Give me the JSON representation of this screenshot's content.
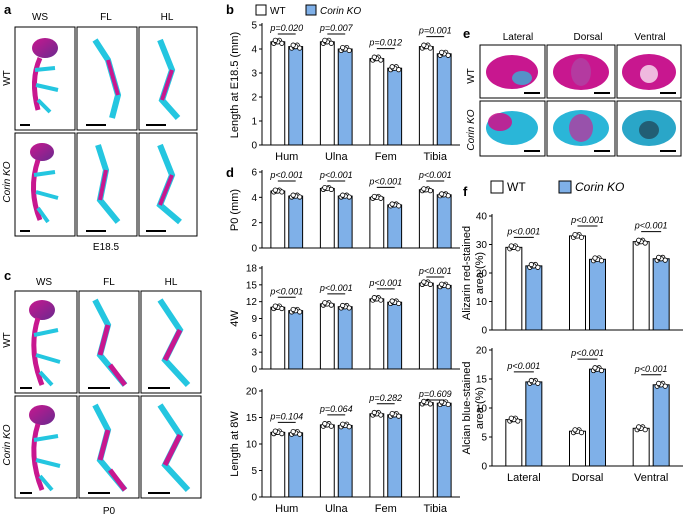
{
  "colors": {
    "wt_fill": "#ffffff",
    "ko_fill": "#7fb0e8",
    "stroke": "#000000"
  },
  "panel_a": {
    "letter": "a",
    "columns": [
      "WS",
      "FL",
      "HL"
    ],
    "rows": [
      "WT",
      "Corin KO"
    ],
    "caption": "E18.5"
  },
  "panel_c": {
    "letter": "c",
    "columns": [
      "WS",
      "FL",
      "HL"
    ],
    "rows": [
      "WT",
      "Corin KO"
    ],
    "caption": "P0"
  },
  "panel_e": {
    "letter": "e",
    "columns": [
      "Lateral",
      "Dorsal",
      "Ventral"
    ],
    "rows": [
      "WT",
      "Corin KO"
    ]
  },
  "legend_b": {
    "letter": "b",
    "wt": "WT",
    "ko": "Corin KO"
  },
  "panel_d_letter": "d",
  "legend_f": {
    "letter": "f",
    "wt": "WT",
    "ko": "Corin KO"
  },
  "chart_data": [
    {
      "id": "b",
      "type": "bar",
      "ylabel": "Length at E18.5 (mm)",
      "ylim": [
        0,
        5
      ],
      "yticks": [
        0,
        1,
        2,
        3,
        4,
        5
      ],
      "categories": [
        "Hum",
        "Ulna",
        "Fem",
        "Tibia"
      ],
      "series": [
        {
          "name": "WT",
          "values": [
            4.3,
            4.3,
            3.6,
            4.1
          ]
        },
        {
          "name": "Corin KO",
          "values": [
            4.1,
            4.0,
            3.2,
            3.8
          ]
        }
      ],
      "pvalues": [
        "p=0.020",
        "p=0.007",
        "p=0.012",
        "p=0.001"
      ]
    },
    {
      "id": "d-P0",
      "type": "bar",
      "ylabel": "P0 (mm)",
      "ylim": [
        0,
        6
      ],
      "yticks": [
        0,
        2,
        4,
        6
      ],
      "categories": [
        "Hum",
        "Ulna",
        "Fem",
        "Tibia"
      ],
      "series": [
        {
          "name": "WT",
          "values": [
            4.5,
            4.7,
            4.0,
            4.6
          ]
        },
        {
          "name": "Corin KO",
          "values": [
            4.1,
            4.1,
            3.4,
            4.2
          ]
        }
      ],
      "pvalues": [
        "p<0.001",
        "p<0.001",
        "p<0.001",
        "p<0.001"
      ]
    },
    {
      "id": "d-4W",
      "type": "bar",
      "ylabel": "4W",
      "ylim": [
        0,
        18
      ],
      "yticks": [
        0,
        3,
        6,
        9,
        12,
        15,
        18
      ],
      "categories": [
        "Hum",
        "Ulna",
        "Fem",
        "Tibia"
      ],
      "series": [
        {
          "name": "WT",
          "values": [
            11.0,
            11.6,
            12.5,
            15.3
          ]
        },
        {
          "name": "Corin KO",
          "values": [
            10.4,
            11.1,
            11.9,
            14.9
          ]
        }
      ],
      "pvalues": [
        "p<0.001",
        "p<0.001",
        "p<0.001",
        "p<0.001"
      ]
    },
    {
      "id": "d-8W",
      "type": "bar",
      "ylabel": "Length at 8W",
      "ylim": [
        0,
        20
      ],
      "yticks": [
        0,
        5,
        10,
        15,
        20
      ],
      "categories": [
        "Hum",
        "Ulna",
        "Fem",
        "Tibia"
      ],
      "series": [
        {
          "name": "WT",
          "values": [
            12.2,
            13.6,
            15.7,
            17.8
          ]
        },
        {
          "name": "Corin KO",
          "values": [
            12.1,
            13.5,
            15.5,
            17.7
          ]
        }
      ],
      "pvalues": [
        "p=0.104",
        "p=0.064",
        "p=0.282",
        "p=0.609"
      ]
    },
    {
      "id": "f-alizarin",
      "type": "bar",
      "ylabel_lines": [
        "Alizarin red-stained",
        "area (%)"
      ],
      "ylim": [
        0,
        40
      ],
      "yticks": [
        0,
        10,
        20,
        30,
        40
      ],
      "categories": [
        "Lateral",
        "Dorsal",
        "Ventral"
      ],
      "series": [
        {
          "name": "WT",
          "values": [
            29,
            33,
            31
          ]
        },
        {
          "name": "Corin KO",
          "values": [
            22.5,
            24.8,
            25
          ]
        }
      ],
      "pvalues": [
        "p<0.001",
        "p<0.001",
        "p<0.001"
      ]
    },
    {
      "id": "f-alcian",
      "type": "bar",
      "ylabel_lines": [
        "Alcian blue-stained",
        "area (%)"
      ],
      "ylim": [
        0,
        20
      ],
      "yticks": [
        0,
        5,
        10,
        15,
        20
      ],
      "categories": [
        "Lateral",
        "Dorsal",
        "Ventral"
      ],
      "series": [
        {
          "name": "WT",
          "values": [
            8,
            6,
            6.5
          ]
        },
        {
          "name": "Corin KO",
          "values": [
            14.5,
            16.7,
            14
          ]
        }
      ],
      "pvalues": [
        "p<0.001",
        "p<0.001",
        "p<0.001"
      ]
    }
  ]
}
